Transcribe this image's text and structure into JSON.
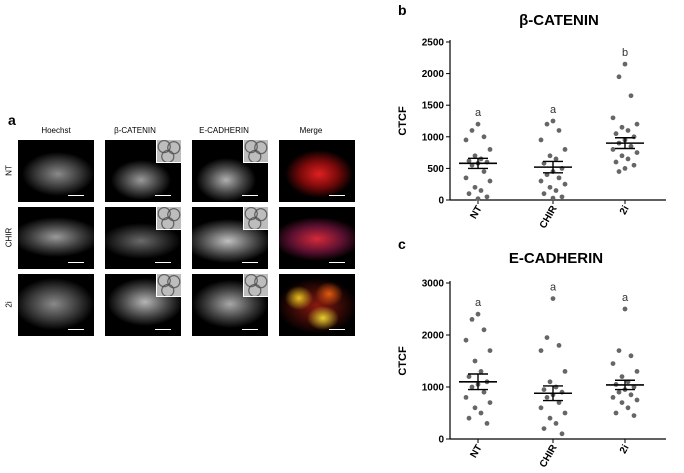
{
  "panels": {
    "a": "a",
    "b": "b",
    "c": "c"
  },
  "microscopy": {
    "columns": [
      "Hoechst",
      "β-CATENIN",
      "E-CADHERIN",
      "Merge"
    ],
    "rows": [
      "NT",
      "CHIR",
      "2i"
    ]
  },
  "chart_data": [
    {
      "type": "scatter",
      "title": "β-CATENIN",
      "ylabel": "CTCF",
      "xlabel": "",
      "categories": [
        "NT",
        "CHIR",
        "2i"
      ],
      "ylim": [
        0,
        2500
      ],
      "yticks": [
        0,
        500,
        1000,
        1500,
        2000,
        2500
      ],
      "means": [
        580,
        520,
        900
      ],
      "sem": [
        80,
        90,
        85
      ],
      "letters": [
        "a",
        "a",
        "b"
      ],
      "points": [
        [
          1200,
          1100,
          1000,
          950,
          800,
          700,
          650,
          620,
          600,
          580,
          550,
          450,
          350,
          300,
          200,
          150,
          100,
          50,
          20
        ],
        [
          1250,
          1200,
          1100,
          950,
          800,
          700,
          650,
          580,
          500,
          450,
          400,
          350,
          300,
          250,
          200,
          150,
          100,
          50,
          30
        ],
        [
          2150,
          1950,
          1650,
          1300,
          1200,
          1150,
          1100,
          1050,
          1000,
          950,
          900,
          850,
          800,
          750,
          700,
          650,
          600,
          550,
          500,
          450
        ]
      ]
    },
    {
      "type": "scatter",
      "title": "E-CADHERIN",
      "ylabel": "CTCF",
      "xlabel": "",
      "categories": [
        "NT",
        "CHIR",
        "2i"
      ],
      "ylim": [
        0,
        3000
      ],
      "yticks": [
        0,
        1000,
        2000,
        3000
      ],
      "means": [
        1100,
        880,
        1040
      ],
      "sem": [
        150,
        140,
        90
      ],
      "letters": [
        "a",
        "a",
        "a"
      ],
      "points": [
        [
          2400,
          2300,
          2100,
          1900,
          1700,
          1500,
          1300,
          1200,
          1100,
          1050,
          1000,
          900,
          800,
          700,
          600,
          500,
          400,
          300
        ],
        [
          2700,
          1950,
          1800,
          1700,
          1300,
          1100,
          1000,
          950,
          900,
          850,
          800,
          700,
          600,
          500,
          400,
          300,
          200,
          100
        ],
        [
          2500,
          1700,
          1600,
          1450,
          1300,
          1200,
          1100,
          1050,
          1000,
          950,
          900,
          850,
          800,
          750,
          700,
          600,
          500,
          450
        ]
      ]
    }
  ]
}
